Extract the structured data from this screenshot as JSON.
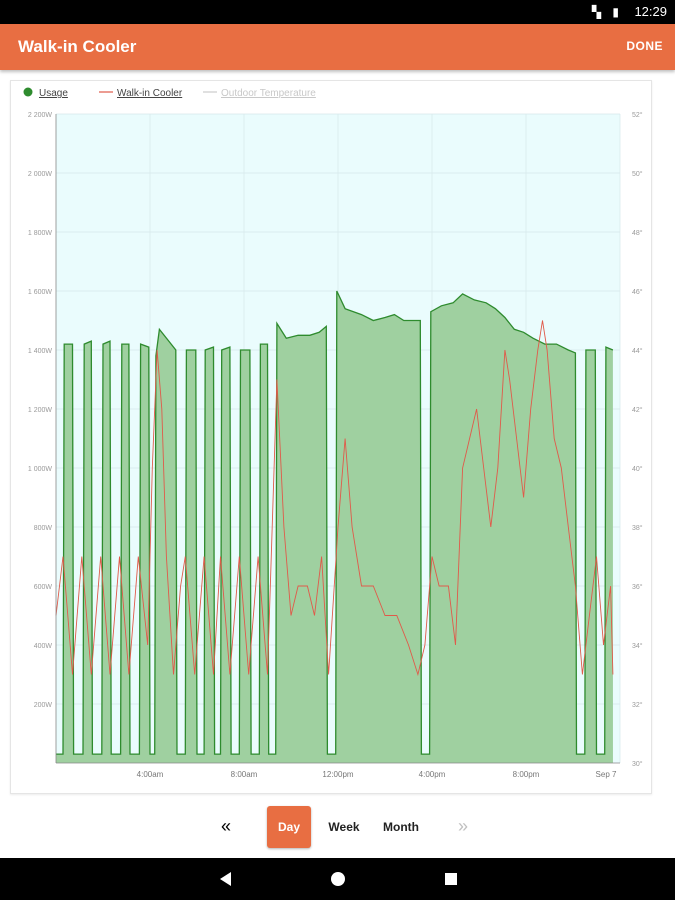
{
  "status_bar": {
    "time": "12:29",
    "icons": "▚ ▮"
  },
  "app_bar": {
    "title": "Walk-in Cooler",
    "done_label": "DONE"
  },
  "legend": [
    {
      "label": "Usage",
      "color": "#2e8b2e",
      "symbol": "dot"
    },
    {
      "label": "Walk-in Cooler",
      "color": "#e05a4a",
      "symbol": "line"
    },
    {
      "label": "Outdoor Temperature",
      "color": "#cccccc",
      "symbol": "line"
    }
  ],
  "chart_data": {
    "type": "area",
    "y_left": {
      "ylim": [
        0,
        2200
      ],
      "ticks": [
        200,
        400,
        600,
        800,
        1000,
        1200,
        1400,
        1600,
        1800,
        2000,
        2200
      ],
      "tick_labels": [
        "200W",
        "400W",
        "600W",
        "800W",
        "1 000W",
        "1 200W",
        "1 400W",
        "1 600W",
        "1 800W",
        "2 000W",
        "2 200W"
      ]
    },
    "y_right": {
      "ylim": [
        30,
        52
      ],
      "ticks": [
        30,
        32,
        34,
        36,
        38,
        40,
        42,
        44,
        46,
        48,
        50,
        52
      ],
      "tick_labels": [
        "30°",
        "32°",
        "34°",
        "36°",
        "38°",
        "40°",
        "42°",
        "44°",
        "46°",
        "48°",
        "50°",
        "52°"
      ]
    },
    "x": {
      "xlim": [
        0,
        24
      ],
      "tick_positions": [
        4,
        8,
        12,
        16,
        20,
        24
      ],
      "tick_labels": [
        "4:00am",
        "8:00am",
        "12:00pm",
        "4:00pm",
        "8:00pm",
        "Sep 7"
      ]
    },
    "series": [
      {
        "name": "Usage",
        "color": "#2e8b2e",
        "fill": "#9fd0a0",
        "points": [
          [
            0,
            30
          ],
          [
            0.3,
            30
          ],
          [
            0.35,
            1420
          ],
          [
            0.7,
            1420
          ],
          [
            0.75,
            30
          ],
          [
            1.15,
            30
          ],
          [
            1.2,
            1420
          ],
          [
            1.5,
            1430
          ],
          [
            1.55,
            30
          ],
          [
            1.95,
            30
          ],
          [
            2,
            1420
          ],
          [
            2.3,
            1430
          ],
          [
            2.35,
            30
          ],
          [
            2.75,
            30
          ],
          [
            2.8,
            1420
          ],
          [
            3.1,
            1420
          ],
          [
            3.15,
            30
          ],
          [
            3.55,
            30
          ],
          [
            3.6,
            1420
          ],
          [
            3.95,
            1410
          ],
          [
            4,
            30
          ],
          [
            4.2,
            30
          ],
          [
            4.25,
            1380
          ],
          [
            4.4,
            1470
          ],
          [
            4.8,
            1430
          ],
          [
            5.1,
            1400
          ],
          [
            5.15,
            30
          ],
          [
            5.5,
            30
          ],
          [
            5.55,
            1400
          ],
          [
            5.95,
            1400
          ],
          [
            6,
            30
          ],
          [
            6.3,
            30
          ],
          [
            6.35,
            1400
          ],
          [
            6.7,
            1410
          ],
          [
            6.75,
            30
          ],
          [
            7,
            30
          ],
          [
            7.05,
            1400
          ],
          [
            7.4,
            1410
          ],
          [
            7.45,
            30
          ],
          [
            7.8,
            30
          ],
          [
            7.85,
            1400
          ],
          [
            8.25,
            1400
          ],
          [
            8.3,
            30
          ],
          [
            8.65,
            30
          ],
          [
            8.7,
            1420
          ],
          [
            9,
            1420
          ],
          [
            9.05,
            30
          ],
          [
            9.35,
            30
          ],
          [
            9.4,
            1490
          ],
          [
            9.8,
            1440
          ],
          [
            10.3,
            1450
          ],
          [
            10.8,
            1450
          ],
          [
            11.2,
            1460
          ],
          [
            11.5,
            1480
          ],
          [
            11.55,
            30
          ],
          [
            11.9,
            30
          ],
          [
            11.95,
            1600
          ],
          [
            12.3,
            1540
          ],
          [
            13,
            1520
          ],
          [
            13.5,
            1500
          ],
          [
            14,
            1510
          ],
          [
            14.4,
            1520
          ],
          [
            14.8,
            1500
          ],
          [
            15.5,
            1500
          ],
          [
            15.55,
            30
          ],
          [
            15.9,
            30
          ],
          [
            15.95,
            1530
          ],
          [
            16.4,
            1550
          ],
          [
            16.9,
            1560
          ],
          [
            17.3,
            1590
          ],
          [
            17.8,
            1570
          ],
          [
            18.3,
            1560
          ],
          [
            18.7,
            1540
          ],
          [
            19.1,
            1510
          ],
          [
            19.5,
            1470
          ],
          [
            19.9,
            1460
          ],
          [
            20.3,
            1440
          ],
          [
            20.8,
            1420
          ],
          [
            21.3,
            1420
          ],
          [
            21.8,
            1400
          ],
          [
            22.1,
            1390
          ],
          [
            22.15,
            30
          ],
          [
            22.5,
            30
          ],
          [
            22.55,
            1400
          ],
          [
            22.95,
            1400
          ],
          [
            23,
            30
          ],
          [
            23.35,
            30
          ],
          [
            23.4,
            1410
          ],
          [
            23.7,
            1400
          ]
        ]
      },
      {
        "name": "Walk-in Cooler",
        "color": "#e05a4a",
        "axis": "right",
        "points": [
          [
            0,
            35
          ],
          [
            0.3,
            37
          ],
          [
            0.5,
            35
          ],
          [
            0.7,
            33
          ],
          [
            1.1,
            37
          ],
          [
            1.5,
            33
          ],
          [
            1.9,
            37
          ],
          [
            2.3,
            33
          ],
          [
            2.7,
            37
          ],
          [
            3.1,
            33
          ],
          [
            3.5,
            37
          ],
          [
            3.9,
            34
          ],
          [
            4.1,
            40
          ],
          [
            4.3,
            44
          ],
          [
            4.5,
            42
          ],
          [
            4.7,
            37
          ],
          [
            5.0,
            33
          ],
          [
            5.3,
            36
          ],
          [
            5.5,
            37
          ],
          [
            5.9,
            33
          ],
          [
            6.3,
            37
          ],
          [
            6.7,
            33
          ],
          [
            7.0,
            37
          ],
          [
            7.4,
            33
          ],
          [
            7.8,
            37
          ],
          [
            8.2,
            33
          ],
          [
            8.6,
            37
          ],
          [
            9.0,
            33
          ],
          [
            9.4,
            43
          ],
          [
            9.7,
            38
          ],
          [
            10.0,
            35
          ],
          [
            10.3,
            36
          ],
          [
            10.7,
            36
          ],
          [
            11.0,
            35
          ],
          [
            11.3,
            37
          ],
          [
            11.6,
            33
          ],
          [
            12.0,
            38
          ],
          [
            12.3,
            41
          ],
          [
            12.6,
            38
          ],
          [
            13.0,
            36
          ],
          [
            13.5,
            36
          ],
          [
            14.0,
            35
          ],
          [
            14.5,
            35
          ],
          [
            15.0,
            34
          ],
          [
            15.4,
            33
          ],
          [
            15.7,
            34
          ],
          [
            16.0,
            37
          ],
          [
            16.3,
            36
          ],
          [
            16.7,
            36
          ],
          [
            17.0,
            34
          ],
          [
            17.3,
            40
          ],
          [
            17.6,
            41
          ],
          [
            17.9,
            42
          ],
          [
            18.2,
            40
          ],
          [
            18.5,
            38
          ],
          [
            18.8,
            40
          ],
          [
            19.1,
            44
          ],
          [
            19.3,
            43
          ],
          [
            19.6,
            41
          ],
          [
            19.9,
            39
          ],
          [
            20.2,
            42
          ],
          [
            20.5,
            44
          ],
          [
            20.7,
            45
          ],
          [
            20.9,
            44
          ],
          [
            21.2,
            41
          ],
          [
            21.5,
            40
          ],
          [
            21.8,
            38
          ],
          [
            22.1,
            36
          ],
          [
            22.4,
            33
          ],
          [
            22.7,
            35
          ],
          [
            23.0,
            37
          ],
          [
            23.3,
            34
          ],
          [
            23.6,
            36
          ],
          [
            23.7,
            33
          ]
        ]
      }
    ],
    "legend_placement": "top-left",
    "grid": true,
    "plot_background": "#eafcfd"
  },
  "period_nav": {
    "prev_label": "«",
    "next_label": "»",
    "buttons": [
      {
        "label": "Day",
        "active": true
      },
      {
        "label": "Week",
        "active": false
      },
      {
        "label": "Month",
        "active": false
      }
    ]
  }
}
